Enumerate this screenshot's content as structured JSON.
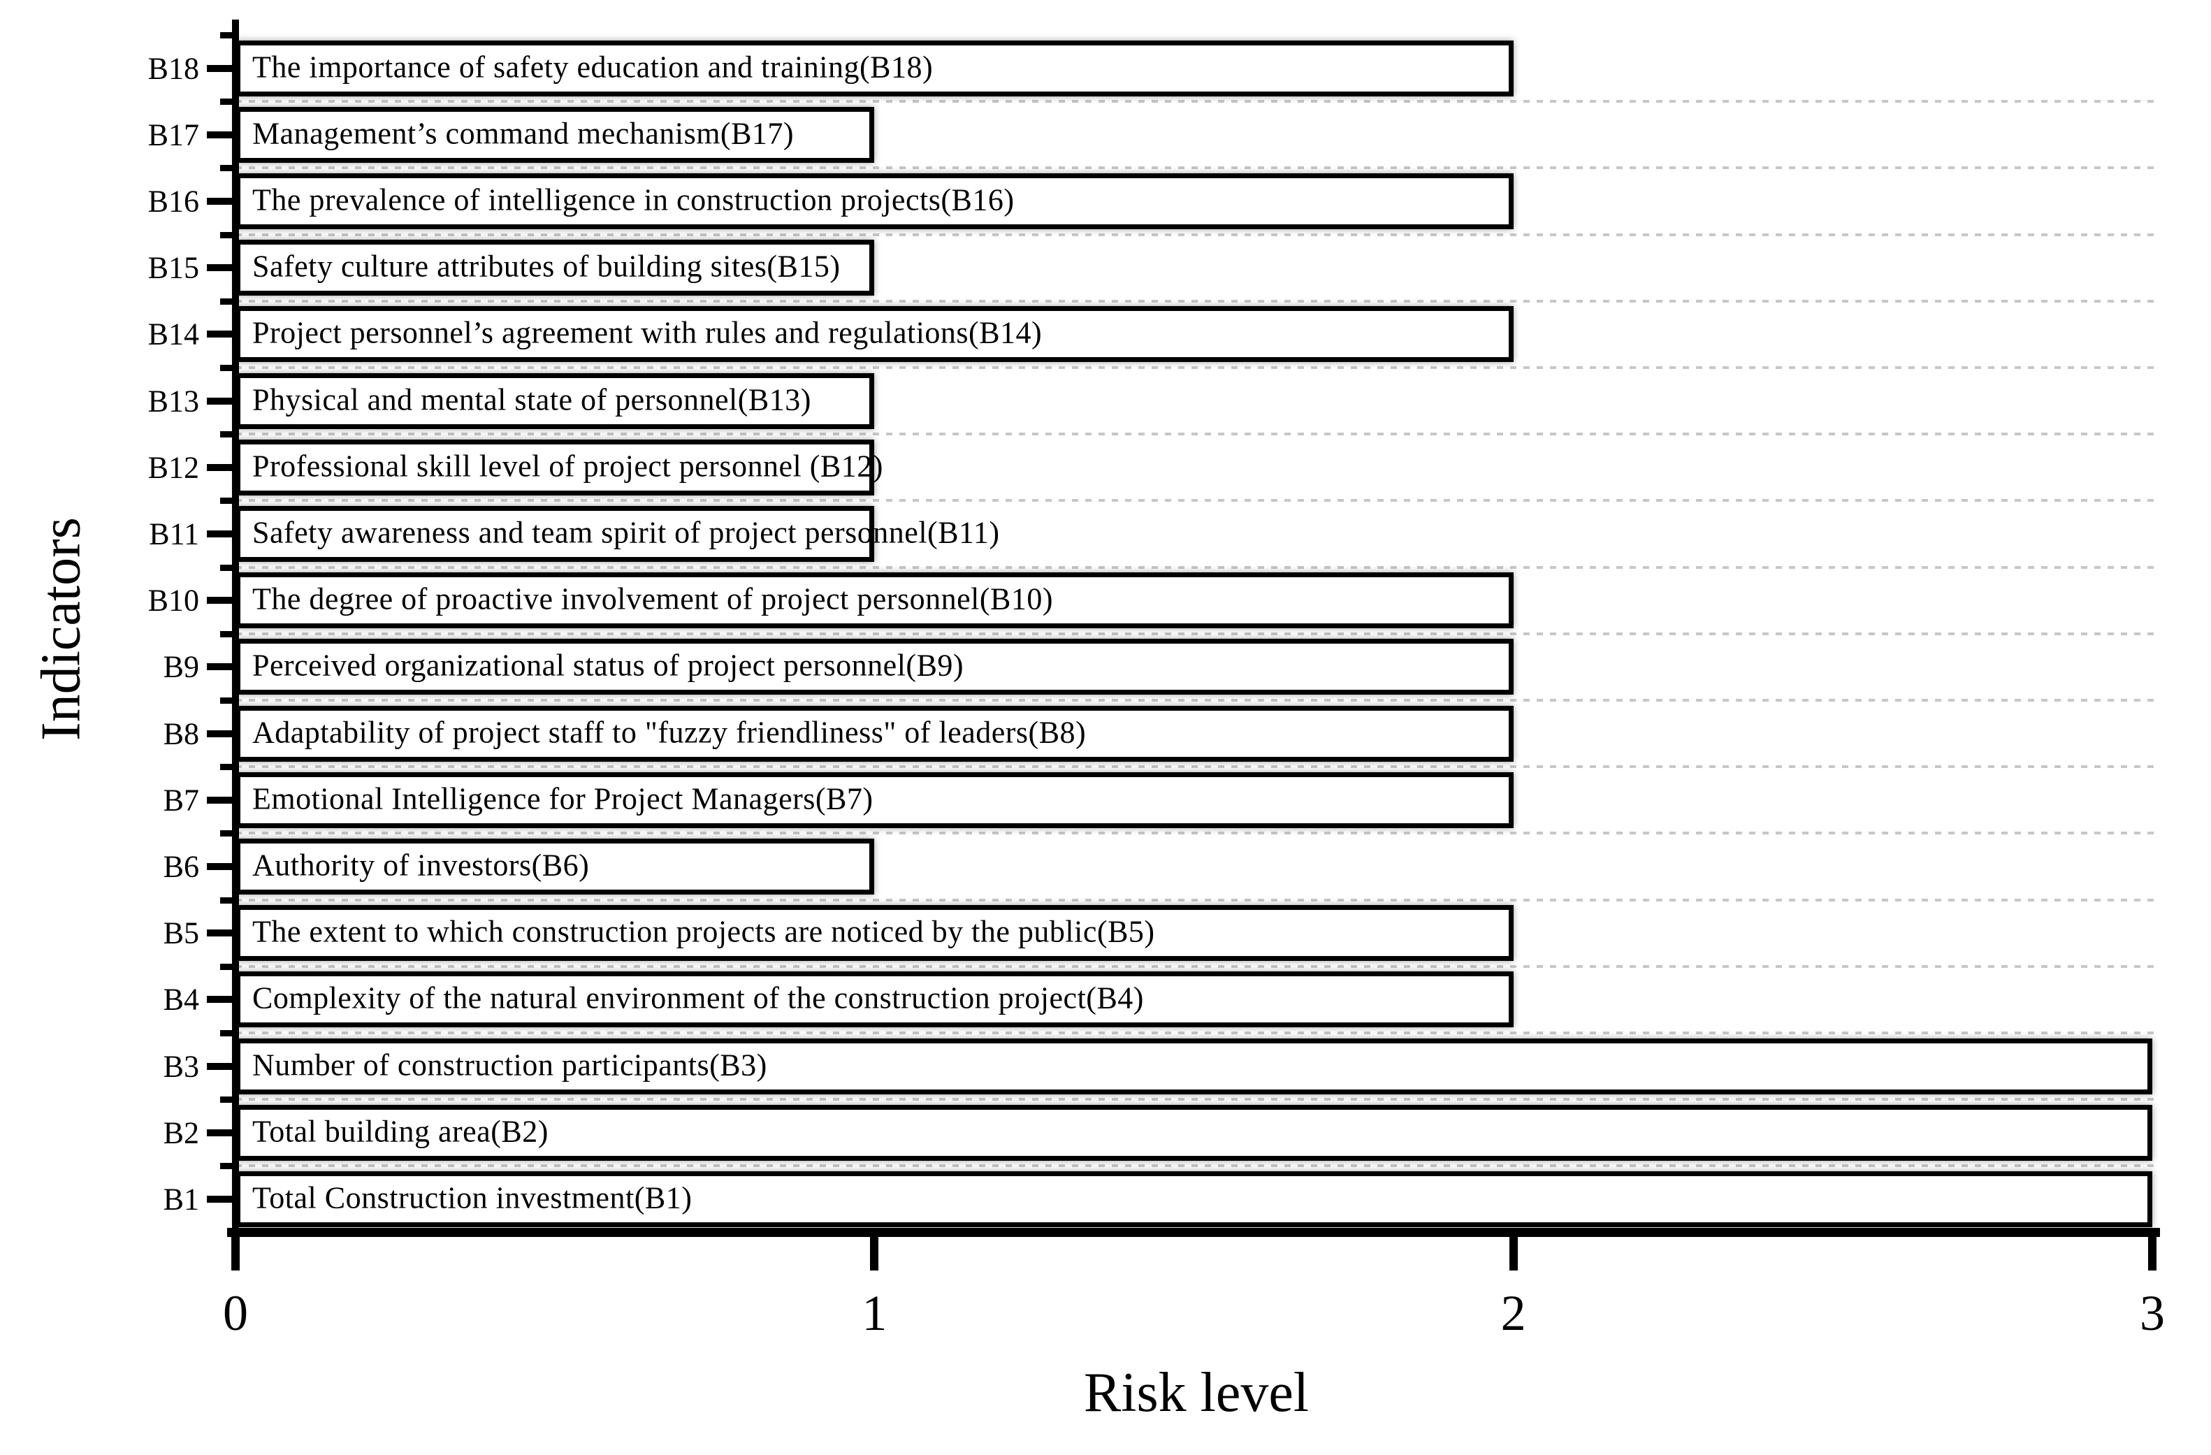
{
  "chart_data": {
    "type": "bar",
    "orientation": "horizontal",
    "title": "",
    "xlabel": "Risk level",
    "ylabel": "Indicators",
    "xlim": [
      0,
      3
    ],
    "xticks": [
      0,
      1,
      2,
      3
    ],
    "xtick_labels": [
      "0",
      "1",
      "2",
      "3"
    ],
    "grid": "dotted horizontal gridlines between category rows",
    "legend": null,
    "bars": [
      {
        "category": "B18",
        "value": 2,
        "label": "The importance of safety education and training(B18)"
      },
      {
        "category": "B17",
        "value": 1,
        "label": "Management’s command mechanism(B17)"
      },
      {
        "category": "B16",
        "value": 2,
        "label": "The prevalence of intelligence in construction projects(B16)"
      },
      {
        "category": "B15",
        "value": 1,
        "label": "Safety culture attributes of building sites(B15)"
      },
      {
        "category": "B14",
        "value": 2,
        "label": "Project personnel’s agreement with rules and regulations(B14)"
      },
      {
        "category": "B13",
        "value": 1,
        "label": "Physical and mental state of personnel(B13)"
      },
      {
        "category": "B12",
        "value": 1,
        "label": "Professional skill level of project personnel (B12)"
      },
      {
        "category": "B11",
        "value": 1,
        "label": "Safety awareness and team spirit of project personnel(B11)"
      },
      {
        "category": "B10",
        "value": 2,
        "label": "The degree of proactive involvement of project personnel(B10)"
      },
      {
        "category": "B9",
        "value": 2,
        "label": "Perceived organizational status of project personnel(B9)"
      },
      {
        "category": "B8",
        "value": 2,
        "label": "Adaptability of project staff to \"fuzzy friendliness\" of leaders(B8)"
      },
      {
        "category": "B7",
        "value": 2,
        "label": "Emotional Intelligence for Project Managers(B7)"
      },
      {
        "category": "B6",
        "value": 1,
        "label": "Authority of investors(B6)"
      },
      {
        "category": "B5",
        "value": 2,
        "label": "The extent to which construction projects are noticed by the public(B5)"
      },
      {
        "category": "B4",
        "value": 2,
        "label": "Complexity of the natural environment of the construction project(B4)"
      },
      {
        "category": "B3",
        "value": 3,
        "label": "Number of construction participants(B3)"
      },
      {
        "category": "B2",
        "value": 3,
        "label": "Total building area(B2)"
      },
      {
        "category": "B1",
        "value": 3,
        "label": "Total Construction investment(B1)"
      }
    ],
    "colors": {
      "background": "#ffffff",
      "bar_fill": "#ffffff",
      "bar_border": "#000000",
      "grid": "#c7c7c7",
      "text": "#000000"
    }
  }
}
